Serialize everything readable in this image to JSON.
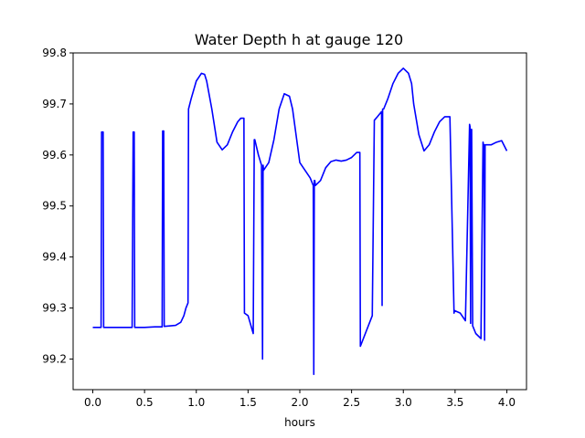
{
  "chart_data": {
    "type": "line",
    "title": "Water Depth h at gauge 120",
    "xlabel": "hours",
    "ylabel": "",
    "xlim": [
      -0.19,
      4.19
    ],
    "ylim": [
      99.14,
      99.8
    ],
    "xticks": [
      0.0,
      0.5,
      1.0,
      1.5,
      2.0,
      2.5,
      3.0,
      3.5,
      4.0
    ],
    "xtick_labels": [
      "0.0",
      "0.5",
      "1.0",
      "1.5",
      "2.0",
      "2.5",
      "3.0",
      "3.5",
      "4.0"
    ],
    "yticks": [
      99.2,
      99.3,
      99.4,
      99.5,
      99.6,
      99.7,
      99.8
    ],
    "ytick_labels": [
      "99.2",
      "99.3",
      "99.4",
      "99.5",
      "99.6",
      "99.7",
      "99.8"
    ],
    "grid": false,
    "series": [
      {
        "color": "#0000ff",
        "x": [
          0.0,
          0.08,
          0.085,
          0.09,
          0.1,
          0.105,
          0.11,
          0.2,
          0.3,
          0.38,
          0.39,
          0.395,
          0.4,
          0.405,
          0.5,
          0.6,
          0.67,
          0.675,
          0.68,
          0.685,
          0.69,
          0.8,
          0.85,
          0.88,
          0.9,
          0.92,
          0.925,
          0.95,
          1.0,
          1.05,
          1.08,
          1.1,
          1.15,
          1.2,
          1.25,
          1.3,
          1.35,
          1.4,
          1.43,
          1.46,
          1.465,
          1.5,
          1.55,
          1.56,
          1.565,
          1.6,
          1.63,
          1.64,
          1.645,
          1.65,
          1.7,
          1.75,
          1.8,
          1.85,
          1.9,
          1.93,
          1.97,
          2.0,
          2.05,
          2.1,
          2.13,
          2.135,
          2.14,
          2.145,
          2.15,
          2.2,
          2.25,
          2.3,
          2.35,
          2.4,
          2.45,
          2.5,
          2.55,
          2.58,
          2.585,
          2.7,
          2.72,
          2.75,
          2.79,
          2.795,
          2.8,
          2.805,
          2.81,
          2.85,
          2.9,
          2.95,
          3.0,
          3.05,
          3.08,
          3.1,
          3.15,
          3.2,
          3.25,
          3.3,
          3.35,
          3.4,
          3.45,
          3.49,
          3.495,
          3.55,
          3.6,
          3.64,
          3.645,
          3.65,
          3.655,
          3.66,
          3.67,
          3.7,
          3.75,
          3.77,
          3.775,
          3.78,
          3.785,
          3.79,
          3.85,
          3.9,
          3.95,
          4.0
        ],
        "y": [
          99.262,
          99.262,
          99.645,
          99.645,
          99.645,
          99.262,
          99.262,
          99.262,
          99.262,
          99.262,
          99.645,
          99.645,
          99.645,
          99.262,
          99.262,
          99.263,
          99.263,
          99.647,
          99.647,
          99.647,
          99.264,
          99.266,
          99.272,
          99.285,
          99.3,
          99.31,
          99.69,
          99.71,
          99.745,
          99.76,
          99.758,
          99.745,
          99.69,
          99.625,
          99.61,
          99.62,
          99.645,
          99.665,
          99.672,
          99.672,
          99.29,
          99.285,
          99.25,
          99.63,
          99.63,
          99.6,
          99.58,
          99.2,
          99.58,
          99.57,
          99.585,
          99.63,
          99.69,
          99.72,
          99.715,
          99.69,
          99.63,
          99.585,
          99.57,
          99.555,
          99.54,
          99.17,
          99.55,
          99.55,
          99.54,
          99.55,
          99.575,
          99.587,
          99.59,
          99.588,
          99.59,
          99.595,
          99.605,
          99.605,
          99.225,
          99.285,
          99.668,
          99.675,
          99.685,
          99.305,
          99.69,
          99.69,
          99.69,
          99.71,
          99.74,
          99.76,
          99.77,
          99.76,
          99.74,
          99.7,
          99.64,
          99.608,
          99.62,
          99.645,
          99.665,
          99.675,
          99.675,
          99.29,
          99.295,
          99.29,
          99.275,
          99.66,
          99.655,
          99.27,
          99.65,
          99.65,
          99.265,
          99.25,
          99.24,
          99.625,
          99.62,
          99.62,
          99.237,
          99.62,
          99.62,
          99.625,
          99.628,
          99.608
        ]
      }
    ]
  }
}
